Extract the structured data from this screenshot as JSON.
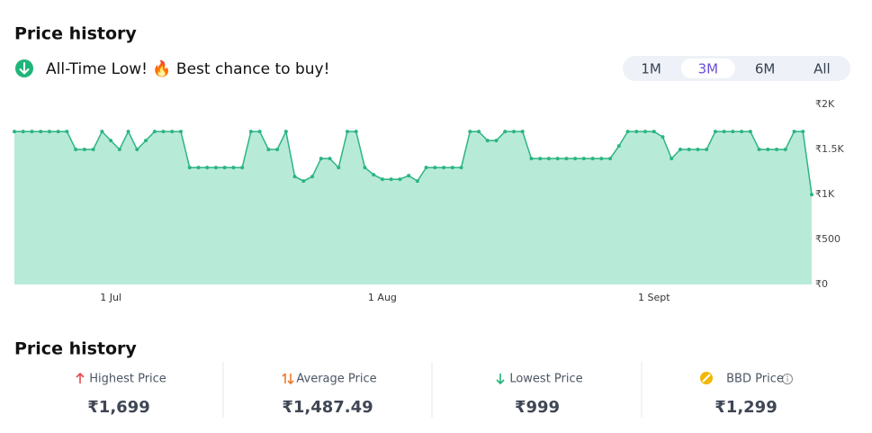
{
  "header": {
    "title": "Price history",
    "banner": "All-Time Low! 🔥 Best chance to buy!"
  },
  "tabs": {
    "items": [
      "1M",
      "3M",
      "6M",
      "All"
    ],
    "active": 1
  },
  "chart_data": {
    "type": "line",
    "color": "#2bb582",
    "area_color": "#b8ead8",
    "categories": [
      null,
      null,
      null,
      null,
      null,
      null,
      null,
      null,
      null,
      null,
      null,
      "1 Jul",
      null,
      null,
      null,
      null,
      null,
      null,
      null,
      null,
      null,
      null,
      null,
      null,
      null,
      null,
      null,
      null,
      null,
      null,
      null,
      null,
      null,
      null,
      null,
      null,
      null,
      null,
      null,
      null,
      null,
      null,
      "1 Aug",
      null,
      null,
      null,
      null,
      null,
      null,
      null,
      null,
      null,
      null,
      null,
      null,
      null,
      null,
      null,
      null,
      null,
      null,
      null,
      null,
      null,
      null,
      null,
      null,
      null,
      null,
      null,
      null,
      null,
      null,
      "1 Sept",
      null,
      null,
      null,
      null,
      null,
      null,
      null,
      null,
      null,
      null,
      null,
      null,
      null,
      null,
      null,
      null,
      null,
      null
    ],
    "values": [
      1699,
      1699,
      1699,
      1699,
      1699,
      1699,
      1699,
      1500,
      1500,
      1500,
      1699,
      1599,
      1500,
      1699,
      1500,
      1599,
      1699,
      1699,
      1699,
      1699,
      1299,
      1299,
      1299,
      1299,
      1299,
      1299,
      1299,
      1699,
      1699,
      1500,
      1500,
      1699,
      1199,
      1149,
      1199,
      1399,
      1399,
      1299,
      1699,
      1699,
      1299,
      1219,
      1169,
      1169,
      1169,
      1209,
      1149,
      1299,
      1299,
      1299,
      1299,
      1299,
      1699,
      1699,
      1599,
      1599,
      1699,
      1699,
      1699,
      1399,
      1399,
      1399,
      1399,
      1399,
      1399,
      1399,
      1399,
      1399,
      1399,
      1539,
      1699,
      1699,
      1699,
      1699,
      1639,
      1399,
      1500,
      1500,
      1500,
      1500,
      1699,
      1699,
      1699,
      1699,
      1699,
      1500,
      1500,
      1500,
      1500,
      1699,
      1699,
      999
    ],
    "ylim": [
      0,
      2000
    ],
    "yticks": [
      {
        "value": 0,
        "label": "₹0"
      },
      {
        "value": 500,
        "label": "₹500"
      },
      {
        "value": 1000,
        "label": "₹1K"
      },
      {
        "value": 1500,
        "label": "₹1.5K"
      },
      {
        "value": 2000,
        "label": "₹2K"
      }
    ],
    "grid": false
  },
  "summary": {
    "title": "Price history",
    "stats": [
      {
        "label": "Highest Price",
        "value": "₹1,699"
      },
      {
        "label": "Average Price",
        "value": "₹1,487.49"
      },
      {
        "label": "Lowest Price",
        "value": "₹999"
      },
      {
        "label": "BBD Price",
        "value": "₹1,299"
      }
    ]
  }
}
